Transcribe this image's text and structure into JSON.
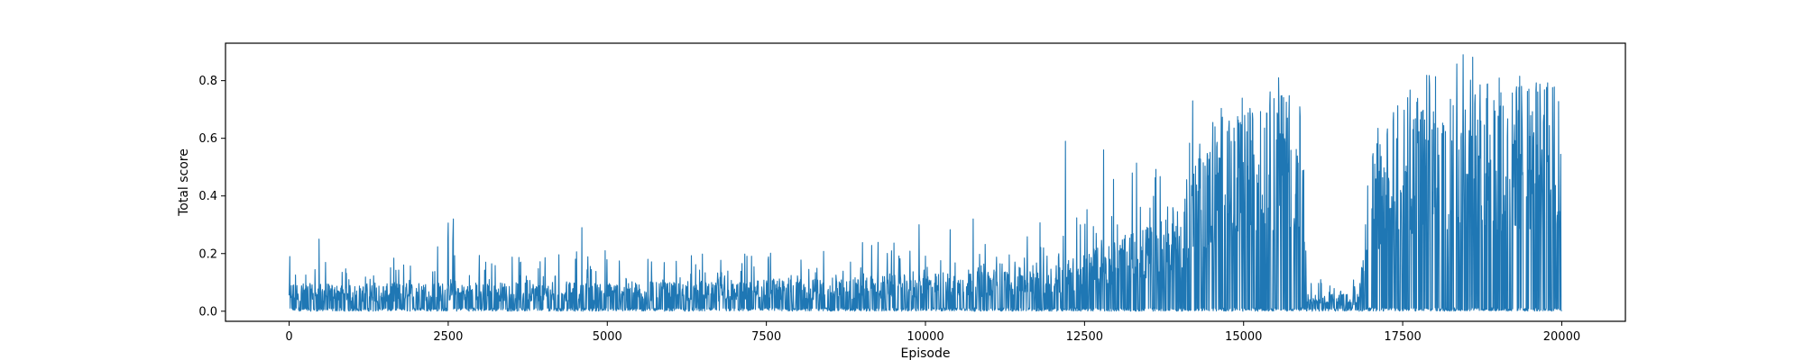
{
  "chart_data": {
    "type": "line",
    "title": "",
    "xlabel": "Episode",
    "ylabel": "Total score",
    "xlim": [
      -1000,
      21000
    ],
    "ylim": [
      -0.035,
      0.93
    ],
    "xticks": [
      0,
      2500,
      5000,
      7500,
      10000,
      12500,
      15000,
      17500,
      20000
    ],
    "yticks": [
      0.0,
      0.2,
      0.4,
      0.6,
      0.8
    ],
    "xtick_labels": [
      "0",
      "2500",
      "5000",
      "7500",
      "10000",
      "12500",
      "15000",
      "17500",
      "20000"
    ],
    "ytick_labels": [
      "0.0",
      "0.2",
      "0.4",
      "0.6",
      "0.8"
    ],
    "grid": false,
    "legend": null,
    "series": [
      {
        "color": "#1f77b4",
        "episode_range": [
          0,
          20000
        ],
        "envelope": {
          "x": [
            0,
            1000,
            2000,
            2500,
            3000,
            4000,
            5000,
            6000,
            7000,
            8000,
            9000,
            10000,
            11000,
            11500,
            12000,
            12500,
            13000,
            13500,
            14000,
            14200,
            14500,
            15000,
            15500,
            15900,
            16000,
            16100,
            16500,
            16800,
            16900,
            17000,
            17200,
            17500,
            18000,
            18500,
            19000,
            19500,
            20000
          ],
          "upper": [
            0.19,
            0.17,
            0.2,
            0.32,
            0.2,
            0.22,
            0.22,
            0.2,
            0.2,
            0.22,
            0.26,
            0.3,
            0.3,
            0.25,
            0.35,
            0.45,
            0.5,
            0.55,
            0.58,
            0.73,
            0.72,
            0.78,
            0.8,
            0.79,
            0.15,
            0.1,
            0.14,
            0.13,
            0.41,
            0.64,
            0.7,
            0.83,
            0.86,
            0.89,
            0.87,
            0.86,
            0.84
          ],
          "typical_high": [
            0.1,
            0.09,
            0.1,
            0.1,
            0.1,
            0.1,
            0.1,
            0.1,
            0.1,
            0.11,
            0.12,
            0.13,
            0.14,
            0.15,
            0.17,
            0.2,
            0.25,
            0.3,
            0.35,
            0.5,
            0.6,
            0.66,
            0.72,
            0.74,
            0.06,
            0.05,
            0.06,
            0.06,
            0.25,
            0.55,
            0.62,
            0.74,
            0.77,
            0.8,
            0.78,
            0.77,
            0.75
          ]
        },
        "peaks": [
          {
            "x": 10,
            "y": 0.19
          },
          {
            "x": 470,
            "y": 0.25
          },
          {
            "x": 2580,
            "y": 0.32
          },
          {
            "x": 4600,
            "y": 0.29
          },
          {
            "x": 9900,
            "y": 0.3
          },
          {
            "x": 10750,
            "y": 0.32
          },
          {
            "x": 12200,
            "y": 0.59
          },
          {
            "x": 12800,
            "y": 0.56
          },
          {
            "x": 14200,
            "y": 0.73
          },
          {
            "x": 15550,
            "y": 0.81
          },
          {
            "x": 18450,
            "y": 0.89
          }
        ]
      }
    ]
  }
}
